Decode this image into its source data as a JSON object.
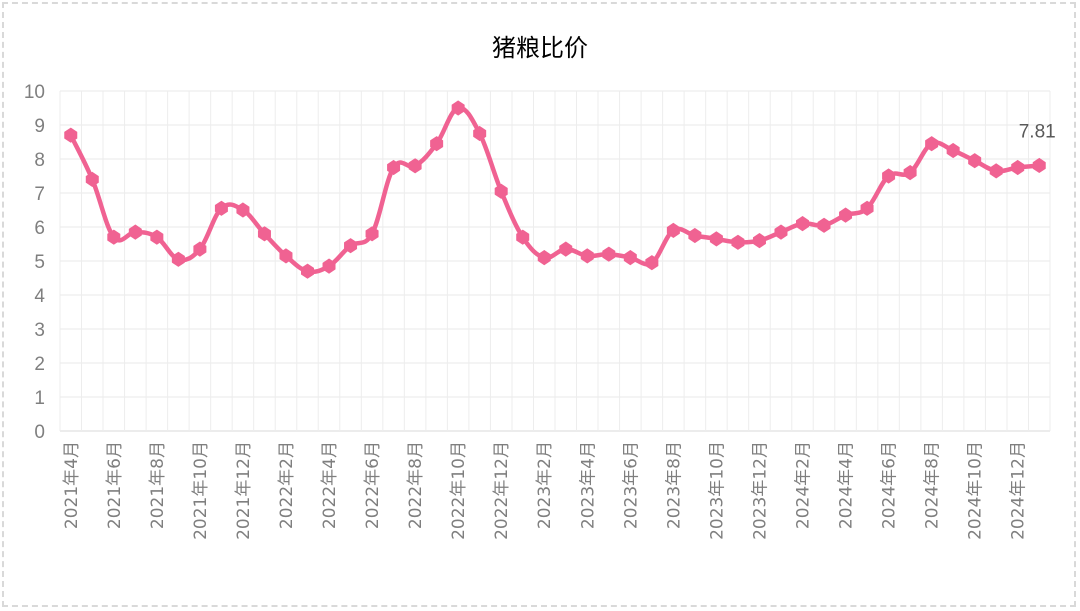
{
  "chart_data": {
    "type": "line",
    "title": "猪粮比价",
    "xlabel": "",
    "ylabel": "",
    "ylim": [
      0,
      10
    ],
    "yticks": [
      0,
      1,
      2,
      3,
      4,
      5,
      6,
      7,
      8,
      9,
      10
    ],
    "grid": true,
    "legend": "none",
    "line_color": "#f06292",
    "x": [
      "2021年4月",
      "2021年5月",
      "2021年6月",
      "2021年7月",
      "2021年8月",
      "2021年9月",
      "2021年10月",
      "2021年11月",
      "2021年12月",
      "2022年1月",
      "2022年2月",
      "2022年3月",
      "2022年4月",
      "2022年5月",
      "2022年6月",
      "2022年7月",
      "2022年8月",
      "2022年9月",
      "2022年10月",
      "2022年11月",
      "2022年12月",
      "2023年1月",
      "2023年2月",
      "2023年3月",
      "2023年4月",
      "2023年5月",
      "2023年6月",
      "2023年7月",
      "2023年8月",
      "2023年9月",
      "2023年10月",
      "2023年11月",
      "2023年12月",
      "2024年1月",
      "2024年2月",
      "2024年3月",
      "2024年4月",
      "2024年5月",
      "2024年6月",
      "2024年7月",
      "2024年8月",
      "2024年9月",
      "2024年10月",
      "2024年11月",
      "2024年12月",
      "2025年1月"
    ],
    "x_tick_labels": [
      "2021年4月",
      "",
      "2021年6月",
      "",
      "2021年8月",
      "",
      "2021年10月",
      "",
      "2021年12月",
      "",
      "2022年2月",
      "",
      "2022年4月",
      "",
      "2022年6月",
      "",
      "2022年8月",
      "",
      "2022年10月",
      "",
      "2022年12月",
      "",
      "2023年2月",
      "",
      "2023年4月",
      "",
      "2023年6月",
      "",
      "2023年8月",
      "",
      "2023年10月",
      "",
      "2023年12月",
      "",
      "2024年2月",
      "",
      "2024年4月",
      "",
      "2024年6月",
      "",
      "2024年8月",
      "",
      "2024年10月",
      "",
      "2024年12月",
      ""
    ],
    "values": [
      8.7,
      7.4,
      5.7,
      5.85,
      5.7,
      5.05,
      5.35,
      6.55,
      6.5,
      5.8,
      5.15,
      4.7,
      4.85,
      5.45,
      5.8,
      7.75,
      7.8,
      8.45,
      9.5,
      8.75,
      7.05,
      5.7,
      5.1,
      5.35,
      5.15,
      5.2,
      5.1,
      4.95,
      5.9,
      5.75,
      5.65,
      5.55,
      5.6,
      5.85,
      6.1,
      6.05,
      6.35,
      6.55,
      7.5,
      7.6,
      8.45,
      8.25,
      7.95,
      7.65,
      7.75,
      7.81
    ],
    "data_labels": [
      {
        "index": 45,
        "text": "7.81"
      }
    ]
  }
}
